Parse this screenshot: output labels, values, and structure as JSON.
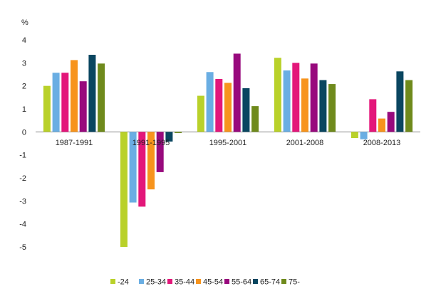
{
  "chart_data": {
    "type": "bar",
    "title": "",
    "xlabel": "",
    "ylabel": "%",
    "ylim": [
      -5,
      4
    ],
    "yticks": [
      -5,
      -4,
      -3,
      -2,
      -1,
      0,
      1,
      2,
      3,
      4
    ],
    "grid": false,
    "legend_position": "bottom",
    "categories": [
      "1987-1991",
      "1991-1995",
      "1995-2001",
      "2001-2008",
      "2008-2013"
    ],
    "series": [
      {
        "name": "-24",
        "color": "#b9d12a",
        "values": [
          2.0,
          -5.0,
          1.57,
          3.22,
          -0.27
        ]
      },
      {
        "name": "25-34",
        "color": "#6aaee3",
        "values": [
          2.57,
          -3.07,
          2.6,
          2.67,
          -0.32
        ]
      },
      {
        "name": "35-44",
        "color": "#e3177a",
        "values": [
          2.57,
          -3.25,
          2.3,
          3.0,
          1.42
        ]
      },
      {
        "name": "45-54",
        "color": "#f7941d",
        "values": [
          3.12,
          -2.5,
          2.13,
          2.32,
          0.58
        ]
      },
      {
        "name": "55-64",
        "color": "#980a7d",
        "values": [
          2.2,
          -1.75,
          3.4,
          2.97,
          0.87
        ]
      },
      {
        "name": "65-74",
        "color": "#0a4660",
        "values": [
          3.35,
          -0.42,
          1.9,
          2.25,
          2.63
        ]
      },
      {
        "name": "75-",
        "color": "#6f8a1c",
        "values": [
          2.97,
          -0.05,
          1.12,
          2.08,
          2.25
        ]
      }
    ]
  }
}
